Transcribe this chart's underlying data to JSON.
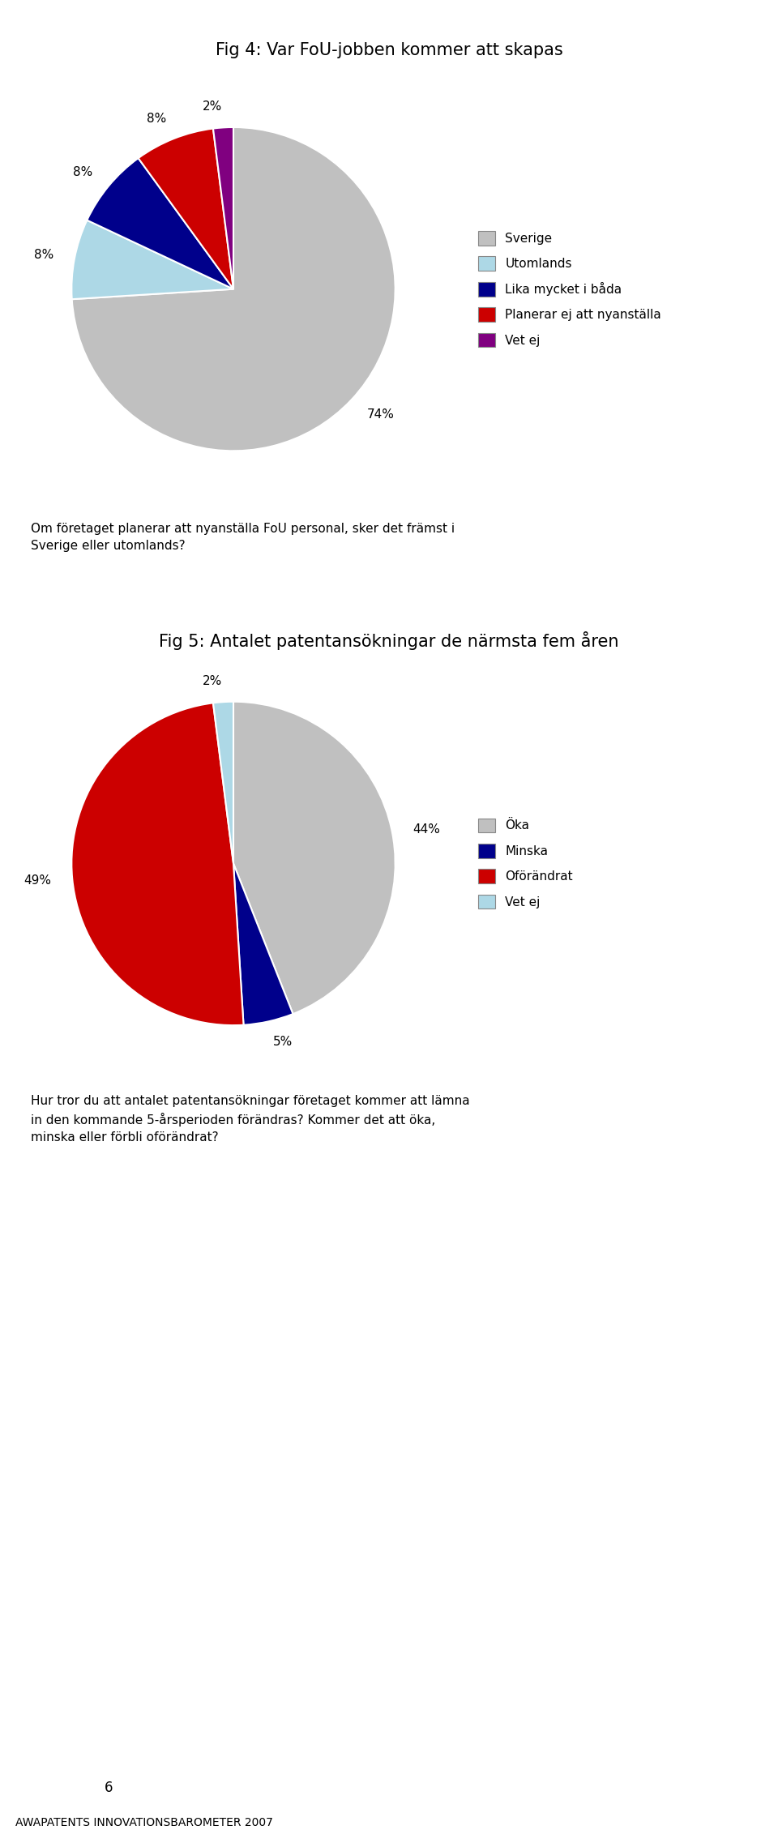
{
  "fig4_title": "Fig 4: Var FoU-jobben kommer att skapas",
  "fig4_values": [
    74,
    8,
    8,
    8,
    2
  ],
  "fig4_labels": [
    "74%",
    "8%",
    "8%",
    "8%",
    "2%"
  ],
  "fig4_colors": [
    "#c0c0c0",
    "#add8e6",
    "#00008b",
    "#cc0000",
    "#800080"
  ],
  "fig4_legend": [
    "Sverige",
    "Utomlands",
    "Lika mycket i båda",
    "Planerar ej att nyanställa",
    "Vet ej"
  ],
  "fig4_question": "Om företaget planerar att nyanställa FoU personal, sker det främst i\nSverige eller utomlands?",
  "fig4_startangle": 90,
  "fig5_title": "Fig 5: Antalet patentansökningar de närmsta fem åren",
  "fig5_values": [
    44,
    5,
    49,
    2
  ],
  "fig5_labels": [
    "44%",
    "5%",
    "49%",
    "2%"
  ],
  "fig5_colors": [
    "#c0c0c0",
    "#00008b",
    "#cc0000",
    "#add8e6"
  ],
  "fig5_legend": [
    "Öka",
    "Minska",
    "Oförändrat",
    "Vet ej"
  ],
  "fig5_question": "Hur tror du att antalet patentansökningar företaget kommer att lämna\nin den kommande 5-årsperioden förändras? Kommer det att öka,\nminska eller förbli oförändrat?",
  "fig5_startangle": 90,
  "page_number": "6",
  "footer": "AWAPATENTS INNOVATIONSBAROMETER 2007",
  "background_color": "#ffffff",
  "title_fontsize": 15,
  "legend_fontsize": 11,
  "label_fontsize": 11,
  "question_fontsize": 11
}
